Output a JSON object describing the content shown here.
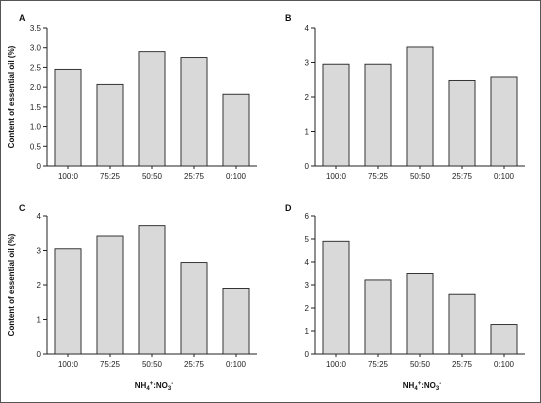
{
  "chart_data": [
    {
      "type": "bar",
      "panel": "A",
      "categories": [
        "100:0",
        "75:25",
        "50:50",
        "25:75",
        "0:100"
      ],
      "values": [
        2.45,
        2.07,
        2.9,
        2.75,
        1.82
      ],
      "ylim": [
        0,
        3.5
      ],
      "yticks": [
        "0",
        "0.5",
        "1.0",
        "1.5",
        "2.0",
        "2.5",
        "3.0",
        "3.5"
      ],
      "ylabel": "Content of essential oil (%)",
      "xlabel": "",
      "grid": false
    },
    {
      "type": "bar",
      "panel": "B",
      "categories": [
        "100:0",
        "75:25",
        "50:50",
        "25:75",
        "0:100"
      ],
      "values": [
        2.95,
        2.95,
        3.45,
        2.48,
        2.58
      ],
      "ylim": [
        0,
        4
      ],
      "yticks": [
        "0",
        "1",
        "2",
        "3",
        "4"
      ],
      "ylabel": "",
      "xlabel": "",
      "grid": false
    },
    {
      "type": "bar",
      "panel": "C",
      "categories": [
        "100:0",
        "75:25",
        "50:50",
        "25:75",
        "0:100"
      ],
      "values": [
        3.05,
        3.42,
        3.72,
        2.65,
        1.9
      ],
      "ylim": [
        0,
        4
      ],
      "yticks": [
        "0",
        "1",
        "2",
        "3",
        "4"
      ],
      "ylabel": "Content of essential oil (%)",
      "xlabel": "NH4+:NO3-",
      "grid": false
    },
    {
      "type": "bar",
      "panel": "D",
      "categories": [
        "100:0",
        "75:25",
        "50:50",
        "25:75",
        "0:100"
      ],
      "values": [
        4.9,
        3.22,
        3.5,
        2.6,
        1.28
      ],
      "ylim": [
        0,
        6
      ],
      "yticks": [
        "0",
        "1",
        "2",
        "3",
        "4",
        "5",
        "6"
      ],
      "ylabel": "",
      "xlabel": "NH4+:NO3-",
      "grid": false
    }
  ]
}
